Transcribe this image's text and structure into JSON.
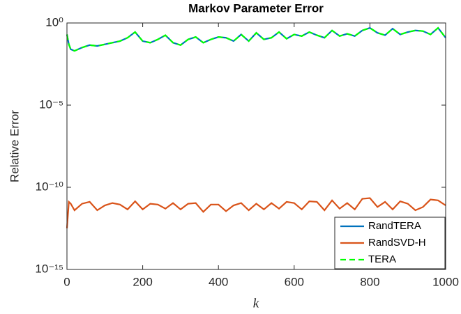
{
  "chart_data": {
    "type": "line",
    "title": "Markov Parameter Error",
    "xlabel": "k",
    "ylabel": "Relative Error",
    "log_y": true,
    "legend": "lower right",
    "xlim": [
      0,
      1000
    ],
    "xticks": [
      0,
      200,
      400,
      600,
      800,
      1000
    ],
    "ylim": [
      1e-15,
      1
    ],
    "yticks": [
      {
        "value": 1e-15,
        "label": "10⁻¹⁵"
      },
      {
        "value": 1e-10,
        "label": "10⁻¹⁰"
      },
      {
        "value": 1e-05,
        "label": "10⁻⁵"
      },
      {
        "value": 1,
        "label": "10⁰"
      }
    ],
    "x": [
      0,
      5,
      10,
      20,
      40,
      60,
      80,
      100,
      120,
      140,
      160,
      180,
      200,
      220,
      240,
      260,
      280,
      300,
      320,
      340,
      360,
      380,
      400,
      420,
      440,
      460,
      480,
      500,
      520,
      540,
      560,
      580,
      600,
      620,
      640,
      660,
      680,
      700,
      720,
      740,
      760,
      780,
      800,
      820,
      840,
      860,
      880,
      900,
      920,
      940,
      960,
      980,
      1000
    ],
    "series": [
      {
        "name": "RandTERA",
        "color": "#0072bd",
        "dash": "solid",
        "values": [
          0.2,
          0.05,
          0.025,
          0.02,
          0.032,
          0.045,
          0.04,
          0.05,
          0.063,
          0.079,
          0.126,
          0.28,
          0.079,
          0.063,
          0.1,
          0.18,
          0.063,
          0.045,
          0.1,
          0.14,
          0.063,
          0.1,
          0.14,
          0.126,
          0.079,
          0.2,
          0.079,
          0.25,
          0.1,
          0.126,
          0.28,
          0.11,
          0.2,
          0.16,
          0.28,
          0.18,
          0.126,
          0.35,
          0.16,
          0.22,
          0.16,
          0.35,
          0.5,
          0.25,
          0.18,
          0.45,
          0.2,
          0.28,
          0.35,
          0.32,
          0.2,
          0.5,
          0.126
        ]
      },
      {
        "name": "RandSVD-H",
        "color": "#d95319",
        "dash": "solid",
        "values": [
          3.2e-13,
          1.3e-11,
          1e-11,
          4e-12,
          1e-11,
          1.3e-11,
          4e-12,
          7.9e-12,
          1.1e-11,
          8.9e-12,
          4.5e-12,
          1.4e-11,
          4.5e-12,
          1e-11,
          8.9e-12,
          5e-12,
          1.1e-11,
          4.5e-12,
          1e-11,
          1.1e-11,
          3.2e-12,
          8.9e-12,
          8.9e-12,
          3.5e-12,
          7.9e-12,
          1.1e-11,
          4e-12,
          1e-11,
          4.5e-12,
          1.1e-11,
          5e-12,
          1.3e-11,
          1.1e-11,
          4.5e-12,
          1.4e-11,
          1.3e-11,
          4e-12,
          1.6e-11,
          5e-12,
          1.1e-11,
          4.5e-12,
          2e-11,
          2.2e-11,
          6.3e-12,
          1.3e-11,
          4.5e-12,
          1.4e-11,
          1e-11,
          4e-12,
          6.3e-12,
          1.8e-11,
          1.6e-11,
          7.9e-12
        ]
      },
      {
        "name": "TERA",
        "color": "#00ff00",
        "dash": "dashed",
        "values": [
          0.2,
          0.05,
          0.025,
          0.02,
          0.032,
          0.045,
          0.04,
          0.05,
          0.063,
          0.079,
          0.126,
          0.28,
          0.079,
          0.063,
          0.1,
          0.18,
          0.063,
          0.045,
          0.1,
          0.14,
          0.063,
          0.1,
          0.14,
          0.126,
          0.079,
          0.2,
          0.079,
          0.25,
          0.1,
          0.126,
          0.28,
          0.11,
          0.2,
          0.16,
          0.28,
          0.18,
          0.126,
          0.35,
          0.16,
          0.22,
          0.16,
          0.35,
          0.5,
          0.25,
          0.18,
          0.45,
          0.2,
          0.28,
          0.35,
          0.32,
          0.2,
          0.5,
          0.126
        ]
      }
    ]
  }
}
